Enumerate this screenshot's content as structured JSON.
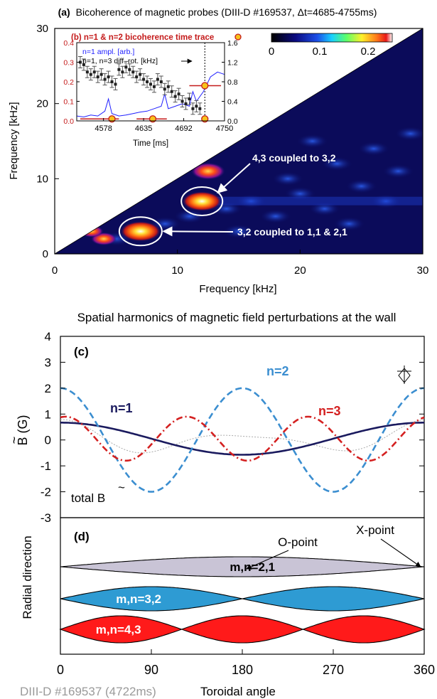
{
  "colors": {
    "n1": "#1a1a5e",
    "n2": "#3b8ed0",
    "n3": "#d42020",
    "island21": "#c9c4d6",
    "island32": "#2e9bd3",
    "island43": "#ff1a1a",
    "inset_red": "#c41a1a",
    "inset_blue": "#2020ff",
    "marker_fill": "#f7c31a"
  },
  "chart_data": [
    {
      "id": "a",
      "type": "heatmap",
      "title_label": "(a)",
      "title": "Bicoherence of magnetic probes (DIII-D #169537, Δt=4685-4755ms)",
      "xlabel": "Frequency [kHz]",
      "ylabel": "Frequency [kHz]",
      "xlim": [
        0,
        30
      ],
      "ylim": [
        0,
        30
      ],
      "xticks": [
        "0",
        "10",
        "20",
        "30"
      ],
      "yticks": [
        "0",
        "10",
        "20",
        "30"
      ],
      "colorbar": {
        "range": [
          0,
          0.25
        ],
        "ticks": [
          "0",
          "0.1",
          "0.2"
        ]
      },
      "peaks": [
        {
          "x": 7,
          "y": 3,
          "v": 0.26
        },
        {
          "x": 12,
          "y": 7,
          "v": 0.25
        },
        {
          "x": 12.5,
          "y": 11,
          "v": 0.2
        },
        {
          "x": 4,
          "y": 2,
          "v": 0.12
        },
        {
          "x": 3,
          "y": 3,
          "v": 0.1
        }
      ],
      "annotations": [
        {
          "text": "4,3 coupled to 3,2",
          "x": 12.3,
          "y": 7
        },
        {
          "text": "3,2 coupled to 1,1 & 2,1",
          "x": 7,
          "y": 3
        }
      ]
    },
    {
      "id": "b",
      "type": "line",
      "title": "(b) n=1 & n=2 bicoherence time trace",
      "xlabel": "Time [ms]",
      "xticks": [
        "4578",
        "4635",
        "4692",
        "4750"
      ],
      "xlim": [
        4540,
        4750
      ],
      "ylim_left": [
        0,
        0.4
      ],
      "yticks_left": [
        "0.0",
        "0.1",
        "0.2",
        "0.3",
        "0.4"
      ],
      "ylim_right": [
        0,
        1.6
      ],
      "yticks_right": [
        "0.0",
        "0.4",
        "0.8",
        "1.2",
        "1.6"
      ],
      "legend": [
        "n=1 ampl. [arb.]",
        "n=1, n=3 diff. rot. [kHz]"
      ],
      "bicoherence_markers": [
        {
          "t": 4590,
          "v": 0.01
        },
        {
          "t": 4648,
          "v": 0.01
        },
        {
          "t": 4722,
          "v": 0.01
        },
        {
          "t": 4722,
          "v": 0.18
        }
      ],
      "diff_rotation": {
        "t": [
          4545,
          4550,
          4555,
          4560,
          4565,
          4570,
          4575,
          4580,
          4585,
          4590,
          4595,
          4600,
          4605,
          4610,
          4615,
          4620,
          4625,
          4630,
          4635,
          4640,
          4645,
          4650,
          4655,
          4660,
          4665,
          4670,
          4675,
          4680,
          4685,
          4690,
          4695,
          4700,
          4705,
          4710,
          4715
        ],
        "v": [
          1.2,
          1.15,
          1.0,
          0.95,
          1.0,
          0.9,
          0.95,
          0.85,
          0.9,
          0.8,
          0.75,
          1.05,
          1.0,
          1.1,
          1.05,
          1.0,
          0.9,
          0.95,
          0.85,
          0.8,
          0.75,
          0.7,
          0.85,
          0.8,
          0.65,
          0.7,
          0.6,
          0.5,
          0.55,
          0.4,
          0.35,
          0.45,
          0.25,
          0.3,
          0.25
        ]
      },
      "n1_amplitude": {
        "t": [
          4540,
          4550,
          4560,
          4570,
          4580,
          4585,
          4590,
          4600,
          4610,
          4620,
          4630,
          4640,
          4650,
          4660,
          4665,
          4670,
          4680,
          4690,
          4700,
          4705,
          4710,
          4720,
          4730,
          4740,
          4750
        ],
        "v": [
          0.1,
          0.08,
          0.12,
          0.1,
          0.2,
          0.45,
          0.15,
          0.1,
          0.12,
          0.15,
          0.18,
          0.2,
          0.25,
          0.3,
          0.55,
          0.25,
          0.3,
          0.35,
          0.3,
          0.6,
          0.4,
          0.6,
          0.9,
          1.0,
          0.95
        ]
      }
    },
    {
      "id": "c",
      "type": "line",
      "title": "Spatial harmonics of magnetic field perturbations at the wall",
      "panel_label": "(c)",
      "ylabel": "B (G)",
      "ylabel_tilde": "~",
      "xlim": [
        0,
        360
      ],
      "ylim": [
        -3,
        4
      ],
      "yticks": [
        "4",
        "3",
        "2",
        "1",
        "0",
        "-1",
        "-2",
        "-3"
      ],
      "total_label": "total B",
      "total_tilde": "~",
      "series": [
        {
          "name": "n=1",
          "amplitude": 0.62,
          "n": 1,
          "phase_deg": 0,
          "offset": 0.05,
          "style": "solid"
        },
        {
          "name": "n=2",
          "amplitude": 2.0,
          "n": 2,
          "phase_deg": 0,
          "offset": 0.0,
          "style": "dashed"
        },
        {
          "name": "n=3",
          "amplitude": 0.85,
          "n": 3,
          "phase_deg": -15,
          "offset": 0.05,
          "style": "dashdot"
        }
      ]
    },
    {
      "id": "d",
      "type": "diagram",
      "panel_label": "(d)",
      "ylabel": "Radial direction",
      "xlabel": "Toroidal angle",
      "xlim": [
        0,
        360
      ],
      "xticks": [
        "0",
        "90",
        "180",
        "270",
        "360"
      ],
      "footnote": "DIII-D #169537  (4722ms)",
      "o_point_label": "O-point",
      "x_point_label": "X-point",
      "islands": [
        {
          "name": "m,n=2,1",
          "n": 1,
          "phase_deg": 0,
          "color_key": "island21"
        },
        {
          "name": "m,n=3,2",
          "n": 2,
          "phase_deg": 0,
          "color_key": "island32"
        },
        {
          "name": "m,n=4,3",
          "n": 3,
          "phase_deg": 0,
          "color_key": "island43"
        }
      ]
    }
  ]
}
